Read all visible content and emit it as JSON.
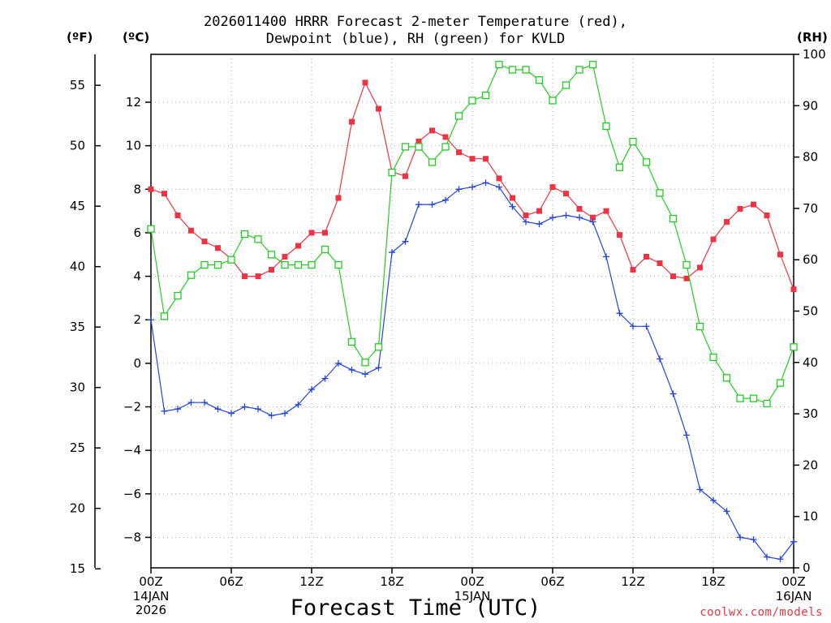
{
  "chart_data": {
    "type": "line",
    "title_line1": "2026011400 HRRR Forecast 2-meter Temperature (red),",
    "title_line2": "Dewpoint (blue), RH (green) for KVLD",
    "left_outer_unit": "(ºF)",
    "left_inner_unit": "(ºC)",
    "right_unit": "(RH)",
    "xlabel": "Forecast Time (UTC)",
    "credit": "coolwx.com/models",
    "x_hours_range": [
      0,
      48
    ],
    "x_ticks": [
      {
        "hour": 0,
        "label": "00Z",
        "date": [
          "14JAN",
          "2026"
        ]
      },
      {
        "hour": 6,
        "label": "06Z"
      },
      {
        "hour": 12,
        "label": "12Z"
      },
      {
        "hour": 18,
        "label": "18Z"
      },
      {
        "hour": 24,
        "label": "00Z",
        "date": [
          "15JAN"
        ]
      },
      {
        "hour": 30,
        "label": "06Z"
      },
      {
        "hour": 36,
        "label": "12Z"
      },
      {
        "hour": 42,
        "label": "18Z"
      },
      {
        "hour": 48,
        "label": "00Z",
        "date": [
          "16JAN"
        ]
      }
    ],
    "ylim_c": [
      -9.4,
      14.2
    ],
    "ylim_rh": [
      0,
      100
    ],
    "y_ticks_c": [
      -8,
      -6,
      -4,
      -2,
      0,
      2,
      4,
      6,
      8,
      10,
      12
    ],
    "y_ticks_f": [
      15,
      20,
      25,
      30,
      35,
      40,
      45,
      50,
      55
    ],
    "y_ticks_rh": [
      0,
      10,
      20,
      30,
      40,
      50,
      60,
      70,
      80,
      90,
      100
    ],
    "grid": true,
    "series": [
      {
        "name": "Temperature",
        "unit": "C",
        "color": "#ee3344",
        "marker": "filled-square",
        "values": [
          8.0,
          7.8,
          6.8,
          6.1,
          5.6,
          5.3,
          4.8,
          4.0,
          4.0,
          4.3,
          4.9,
          5.4,
          6.0,
          6.0,
          7.6,
          11.1,
          12.9,
          11.7,
          8.8,
          8.6,
          10.2,
          10.7,
          10.4,
          9.7,
          9.4,
          9.4,
          8.5,
          7.6,
          6.8,
          7.0,
          8.1,
          7.8,
          7.1,
          6.7,
          7.0,
          5.9,
          4.3,
          4.9,
          4.6,
          4.0,
          3.9,
          4.4,
          5.7,
          6.5,
          7.1,
          7.3,
          6.8,
          5.0,
          3.4
        ]
      },
      {
        "name": "Dewpoint",
        "unit": "C",
        "color": "#2244dd",
        "marker": "plus",
        "values": [
          2.0,
          -2.2,
          -2.1,
          -1.8,
          -1.8,
          -2.1,
          -2.3,
          -2.0,
          -2.1,
          -2.4,
          -2.3,
          -1.9,
          -1.2,
          -0.7,
          0.0,
          -0.3,
          -0.5,
          -0.2,
          5.1,
          5.6,
          7.3,
          7.3,
          7.5,
          8.0,
          8.1,
          8.3,
          8.1,
          7.2,
          6.5,
          6.4,
          6.7,
          6.8,
          6.7,
          6.5,
          4.9,
          2.3,
          1.7,
          1.7,
          0.2,
          -1.4,
          -3.3,
          -5.8,
          -6.3,
          -6.8,
          -8.0,
          -8.1,
          -8.9,
          -9.0,
          -8.2
        ]
      },
      {
        "name": "RH",
        "unit": "%",
        "color": "#22cc22",
        "marker": "open-square",
        "values": [
          66,
          49,
          53,
          57,
          59,
          59,
          60,
          65,
          64,
          61,
          59,
          59,
          59,
          62,
          59,
          44,
          40,
          43,
          77,
          82,
          82,
          79,
          82,
          88,
          91,
          92,
          98,
          97,
          97,
          95,
          91,
          94,
          97,
          98,
          86,
          78,
          83,
          79,
          73,
          68,
          59,
          47,
          41,
          37,
          33,
          33,
          32,
          36,
          43
        ]
      }
    ]
  }
}
